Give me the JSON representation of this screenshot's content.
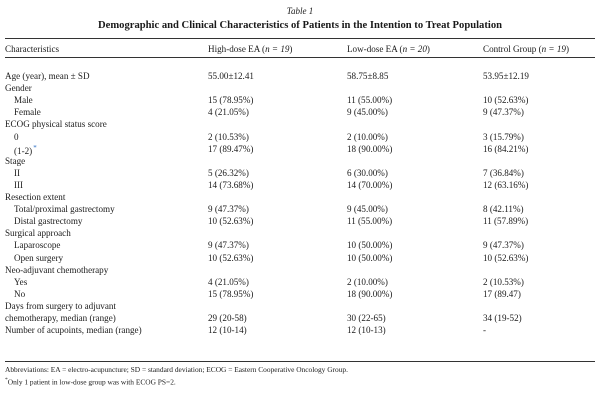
{
  "table": {
    "label": "Table 1",
    "title": "Demographic and Clinical Characteristics of Patients in the Intention to Treat Population",
    "headers": [
      {
        "text": "Characteristics",
        "n": ""
      },
      {
        "text": "High-dose EA (",
        "n": "n = 19",
        "close": ")"
      },
      {
        "text": "Low-dose EA (",
        "n": "n = 20",
        "close": ")"
      },
      {
        "text": "Control Group (",
        "n": "n = 19",
        "close": ")"
      }
    ],
    "rows": [
      {
        "label": "Age (year), mean ± SD",
        "indent": false,
        "values": [
          "55.00±12.41",
          "58.75±8.85",
          "53.95±12.19"
        ]
      },
      {
        "label": "Gender",
        "indent": false,
        "values": [
          "",
          "",
          ""
        ]
      },
      {
        "label": "Male",
        "indent": true,
        "values": [
          "15 (78.95%)",
          "11 (55.00%)",
          "10 (52.63%)"
        ]
      },
      {
        "label": "Female",
        "indent": true,
        "values": [
          "4 (21.05%)",
          "9 (45.00%)",
          "9 (47.37%)"
        ]
      },
      {
        "label": "ECOG physical status score",
        "indent": false,
        "values": [
          "",
          "",
          ""
        ]
      },
      {
        "label": "0",
        "indent": true,
        "values": [
          "2 (10.53%)",
          "2 (10.00%)",
          "3 (15.79%)"
        ]
      },
      {
        "label": "(1-2)",
        "indent": true,
        "asterisk": "*",
        "values": [
          "17 (89.47%)",
          "18 (90.00%)",
          "16 (84.21%)"
        ]
      },
      {
        "label": "Stage",
        "indent": false,
        "values": [
          "",
          "",
          ""
        ]
      },
      {
        "label": "II",
        "indent": true,
        "values": [
          "5 (26.32%)",
          "6 (30.00%)",
          "7 (36.84%)"
        ]
      },
      {
        "label": "III",
        "indent": true,
        "values": [
          "14 (73.68%)",
          "14 (70.00%)",
          "12 (63.16%)"
        ]
      },
      {
        "label": "Resection extent",
        "indent": false,
        "values": [
          "",
          "",
          ""
        ]
      },
      {
        "label": "Total/proximal gastrectomy",
        "indent": true,
        "values": [
          "9 (47.37%)",
          "9 (45.00%)",
          "8 (42.11%)"
        ]
      },
      {
        "label": "Distal gastrectomy",
        "indent": true,
        "values": [
          "10 (52.63%)",
          "11 (55.00%)",
          "11 (57.89%)"
        ]
      },
      {
        "label": "Surgical approach",
        "indent": false,
        "values": [
          "",
          "",
          ""
        ]
      },
      {
        "label": "Laparoscope",
        "indent": true,
        "values": [
          "9 (47.37%)",
          "10 (50.00%)",
          "9 (47.37%)"
        ]
      },
      {
        "label": "Open surgery",
        "indent": true,
        "values": [
          "10 (52.63%)",
          "10 (50.00%)",
          "10 (52.63%)"
        ]
      },
      {
        "label": "Neo-adjuvant chemotherapy",
        "indent": false,
        "values": [
          "",
          "",
          ""
        ]
      },
      {
        "label": "Yes",
        "indent": true,
        "values": [
          "4 (21.05%)",
          "2 (10.00%)",
          "2 (10.53%)"
        ]
      },
      {
        "label": "No",
        "indent": true,
        "values": [
          "15 (78.95%)",
          "18 (90.00%)",
          "17 (89.47)"
        ]
      },
      {
        "label": "Days from surgery to adjuvant",
        "indent": false,
        "values": [
          "",
          "",
          ""
        ]
      },
      {
        "label": "chemotherapy, median (range)",
        "indent": false,
        "values": [
          "29 (20-58)",
          "30 (22-65)",
          "34 (19-52)"
        ]
      },
      {
        "label": "Number of acupoints, median (range)",
        "indent": false,
        "values": [
          "12 (10-14)",
          "12 (10-13)",
          "-"
        ]
      }
    ],
    "footnotes": {
      "abbreviations": "Abbreviations: EA = electro-acupuncture; SD = standard deviation; ECOG = Eastern Cooperative Oncology Group.",
      "marker": "*",
      "note": "Only 1 patient in low-dose group was with ECOG PS=2."
    }
  }
}
